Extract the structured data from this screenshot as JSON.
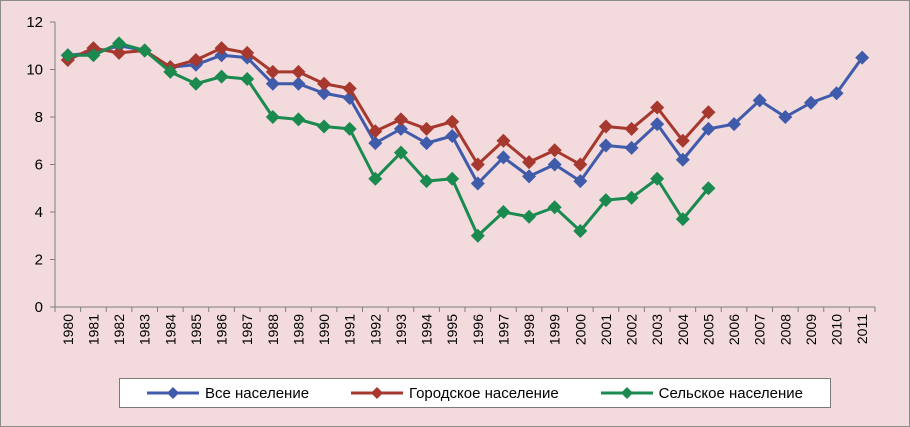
{
  "chart_data": {
    "type": "line",
    "x": [
      "1980",
      "1981",
      "1982",
      "1983",
      "1984",
      "1985",
      "1986",
      "1987",
      "1988",
      "1989",
      "1990",
      "1991",
      "1992",
      "1993",
      "1994",
      "1995",
      "1996",
      "1997",
      "1998",
      "1999",
      "2000",
      "2001",
      "2002",
      "2003",
      "2004",
      "2005",
      "2006",
      "2007",
      "2008",
      "2009",
      "2010",
      "2011"
    ],
    "ylim": [
      0,
      12
    ],
    "yticks": [
      "0",
      "2",
      "4",
      "6",
      "8",
      "10",
      "12"
    ],
    "grid": false,
    "legend_position": "bottom",
    "series": [
      {
        "name": "Все население",
        "color": "#3f5ba9",
        "values": [
          10.6,
          10.7,
          11.0,
          10.8,
          10.1,
          10.2,
          10.6,
          10.5,
          9.4,
          9.4,
          9.0,
          8.8,
          6.9,
          7.5,
          6.9,
          7.2,
          5.2,
          6.3,
          5.5,
          6.0,
          5.3,
          6.8,
          6.7,
          7.7,
          6.2,
          7.5,
          7.7,
          8.7,
          8.0,
          8.6,
          9.0,
          10.5
        ]
      },
      {
        "name": "Городское население",
        "color": "#a6382e",
        "values": [
          10.4,
          10.9,
          10.7,
          10.8,
          10.1,
          10.4,
          10.9,
          10.7,
          9.9,
          9.9,
          9.4,
          9.2,
          7.4,
          7.9,
          7.5,
          7.8,
          6.0,
          7.0,
          6.1,
          6.6,
          6.0,
          7.6,
          7.5,
          8.4,
          7.0,
          8.2,
          null,
          null,
          null,
          null,
          null,
          null
        ]
      },
      {
        "name": "Сельское население",
        "color": "#1a8a4f",
        "values": [
          10.6,
          10.6,
          11.1,
          10.8,
          9.9,
          9.4,
          9.7,
          9.6,
          8.0,
          7.9,
          7.6,
          7.5,
          5.4,
          6.5,
          5.3,
          5.4,
          3.0,
          4.0,
          3.8,
          4.2,
          3.2,
          4.5,
          4.6,
          5.4,
          3.7,
          5.0,
          null,
          null,
          null,
          null,
          null,
          null
        ]
      }
    ]
  }
}
